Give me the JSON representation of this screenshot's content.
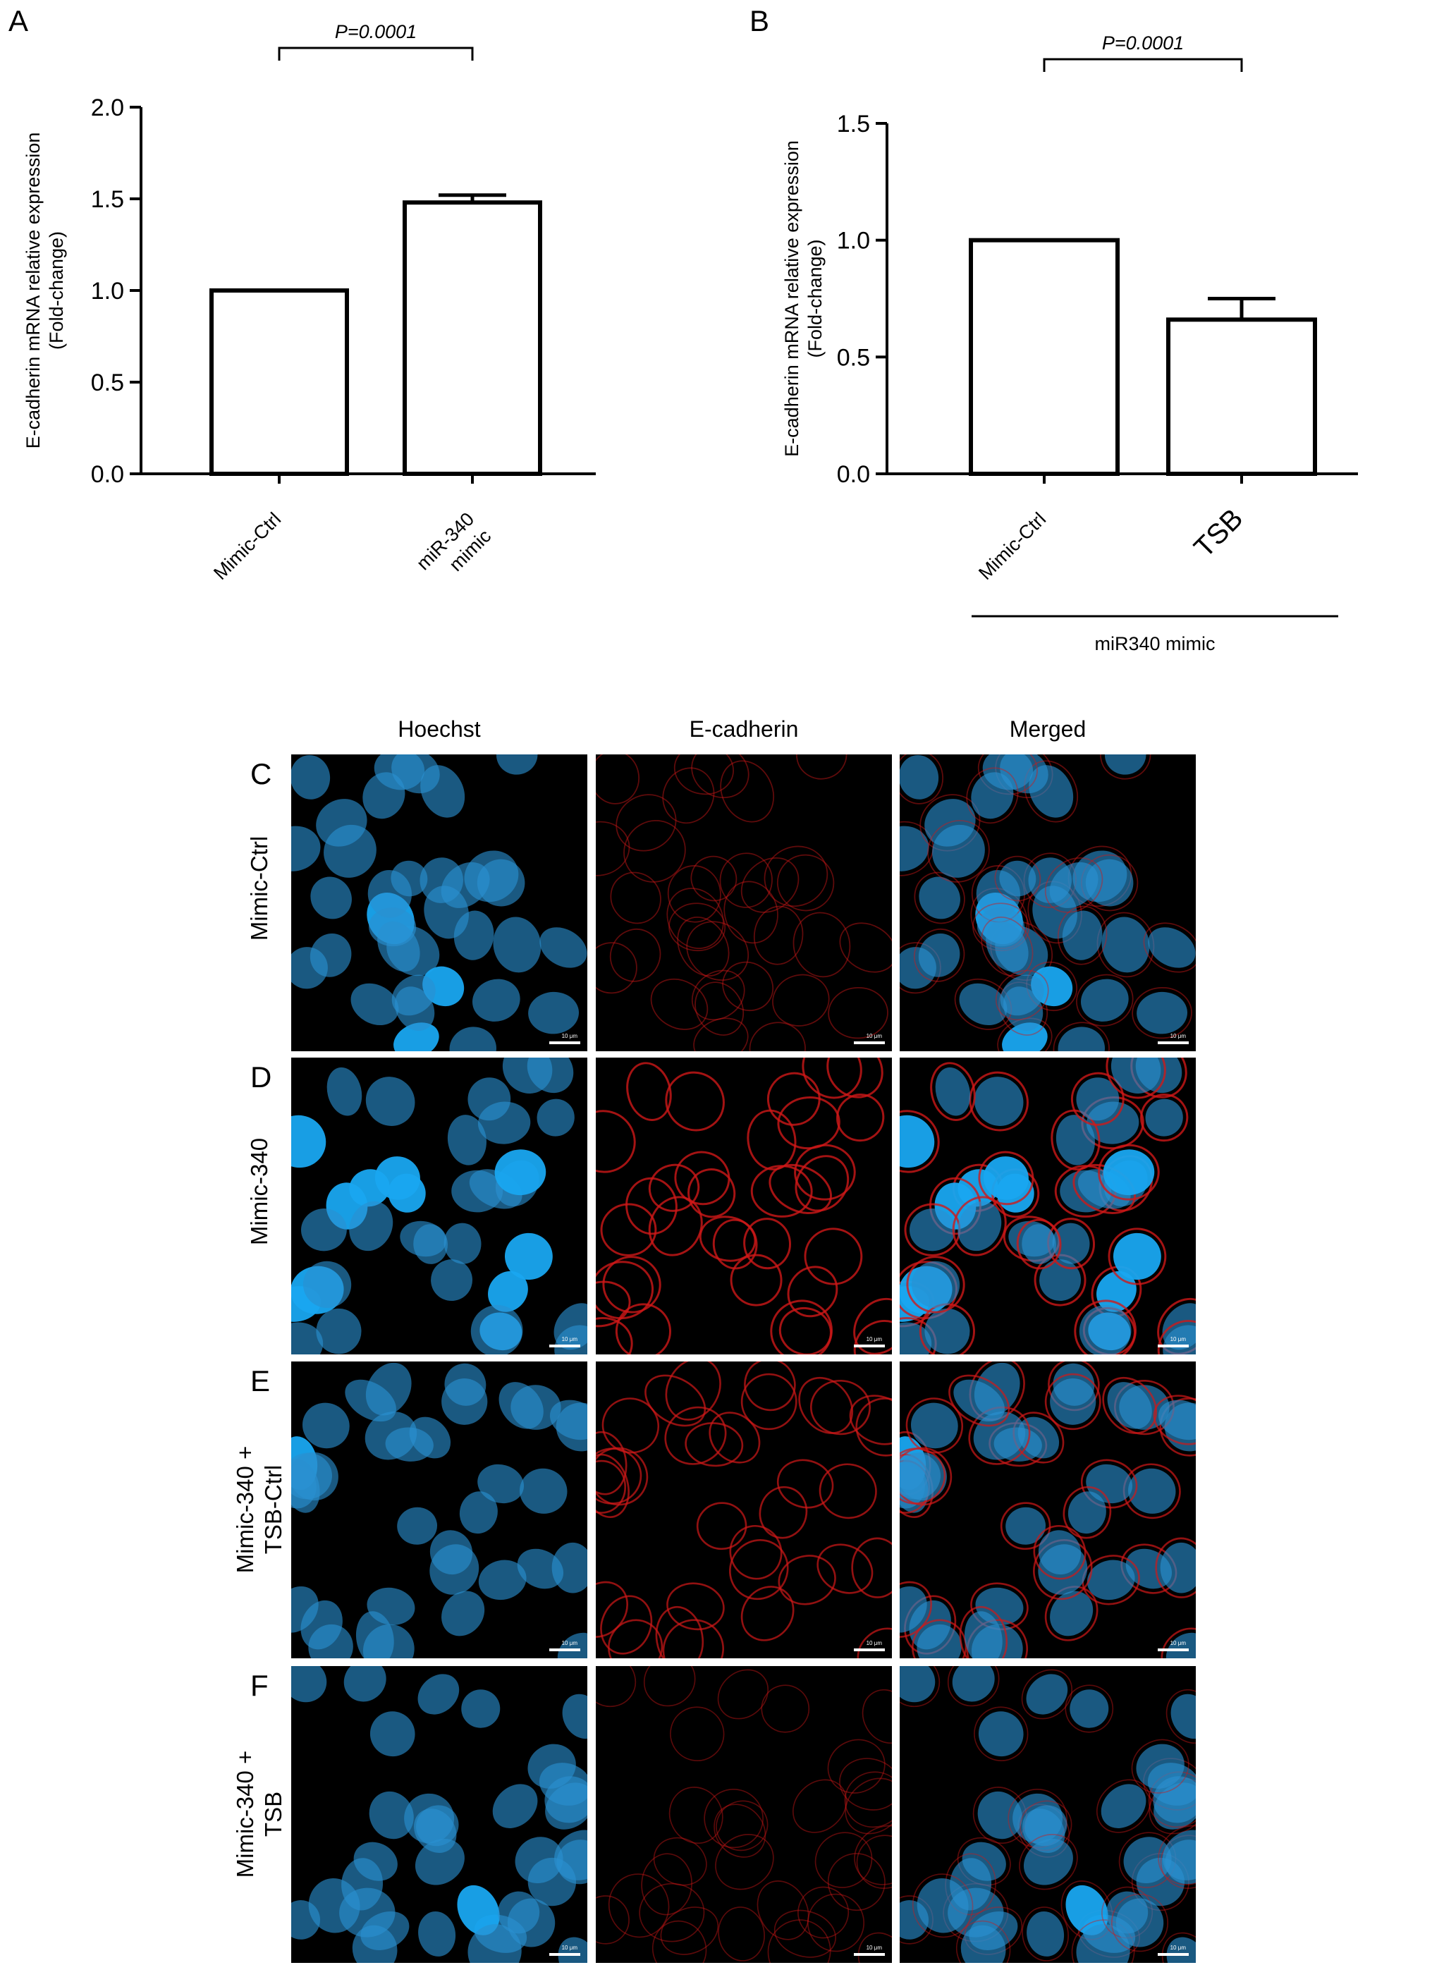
{
  "chart_data": [
    {
      "type": "bar",
      "panel": "A",
      "categories": [
        "Mimic-Ctrl",
        "miR-340 mimic"
      ],
      "category_lines": [
        [
          "Mimic-Ctrl"
        ],
        [
          "miR-340",
          "mimic"
        ]
      ],
      "values": [
        1.0,
        1.48
      ],
      "errors": [
        0,
        0.04
      ],
      "ylabel_lines": [
        "E-cadherin mRNA relative expression",
        "(Fold-change)"
      ],
      "ylim": [
        0,
        2.0
      ],
      "yticks": [
        "0.0",
        "0.5",
        "1.0",
        "1.5",
        "2.0"
      ],
      "annotation": "P=0.0001",
      "group_label": ""
    },
    {
      "type": "bar",
      "panel": "B",
      "categories": [
        "Mimic-Ctrl",
        "TSB"
      ],
      "category_lines": [
        [
          "Mimic-Ctrl"
        ],
        [
          "TSB"
        ]
      ],
      "values": [
        1.0,
        0.66
      ],
      "errors": [
        0,
        0.09
      ],
      "ylabel_lines": [
        "E-cadherin mRNA relative expression",
        "(Fold-change)"
      ],
      "ylim": [
        0,
        1.5
      ],
      "yticks": [
        "0.0",
        "0.5",
        "1.0",
        "1.5"
      ],
      "annotation": "P=0.0001",
      "group_label": "miR340 mimic"
    }
  ],
  "microscopy": {
    "columns": [
      "Hoechst",
      "E-cadherin",
      "Merged"
    ],
    "rows": [
      {
        "letter": "C",
        "label_lines": [
          "Mimic-Ctrl"
        ],
        "ecad_intensity": 0.35
      },
      {
        "letter": "D",
        "label_lines": [
          "Mimic-340"
        ],
        "ecad_intensity": 0.9
      },
      {
        "letter": "E",
        "label_lines": [
          "Mimic-340 +",
          "TSB-Ctrl"
        ],
        "ecad_intensity": 0.75
      },
      {
        "letter": "F",
        "label_lines": [
          "Mimic-340 +",
          "TSB"
        ],
        "ecad_intensity": 0.3
      }
    ],
    "scale_bar_label": "10 μm"
  },
  "colors": {
    "nucleus": "#2a8fd0",
    "membrane": "#d01818",
    "background": "#000000"
  }
}
